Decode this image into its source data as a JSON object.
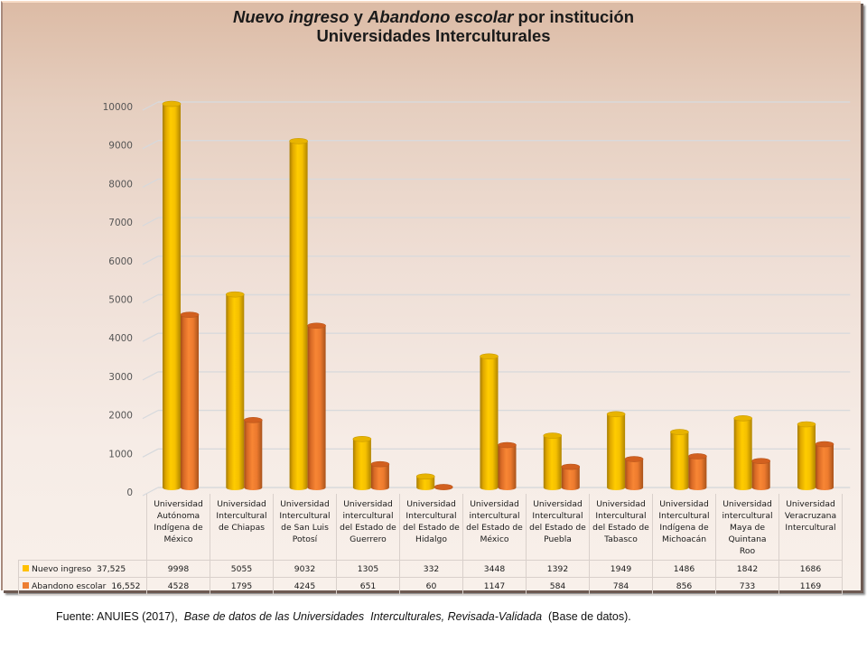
{
  "title": {
    "part1_italic": "Nuevo ingreso",
    "part2": " y ",
    "part3_italic": "Abandono escolar",
    "part4": " por institución",
    "line2": "Universidades Interculturales"
  },
  "colors": {
    "nuevo_ingreso": "#FFC000",
    "abandono_escolar": "#ED7D31"
  },
  "chart_data": {
    "type": "bar",
    "title": "Nuevo ingreso y Abandono escolar por institución — Universidades Interculturales",
    "xlabel": "",
    "ylabel": "",
    "ylim": [
      0,
      10000
    ],
    "yticks": [
      0,
      1000,
      2000,
      3000,
      4000,
      5000,
      6000,
      7000,
      8000,
      9000,
      10000
    ],
    "ytick_labels": [
      "0",
      "1000",
      "2000",
      "3000",
      "4000",
      "5000",
      "6000",
      "7000",
      "8000",
      "9000",
      "10000"
    ],
    "grid": true,
    "legend": "data-table-bottom",
    "categories": [
      "Universidad Autónoma Indígena de México",
      "Universidad Intercultural de Chiapas",
      "Universidad Intercultural de San Luis Potosí",
      "Universidad intercultural del Estado de Guerrero",
      "Universidad Intercultural del Estado de Hidalgo",
      "Universidad intercultural del Estado de México",
      "Universidad Intercultural del Estado de Puebla",
      "Universidad Intercultural del Estado de Tabasco",
      "Universidad Intercultural Indígena de Michoacán",
      "Universidad intercultural Maya de Quintana Roo",
      "Universidad Veracruzana Intercultural"
    ],
    "category_lines": [
      [
        "Universidad",
        "Autónoma",
        "Indígena de",
        "México"
      ],
      [
        "Universidad",
        "Intercultural",
        "de Chiapas"
      ],
      [
        "Universidad",
        "Intercultural",
        "de San Luis",
        "Potosí"
      ],
      [
        "Universidad",
        "intercultural",
        "del Estado de",
        "Guerrero"
      ],
      [
        "Universidad",
        "Intercultural",
        "del Estado de",
        "Hidalgo"
      ],
      [
        "Universidad",
        "intercultural",
        "del Estado de",
        "México"
      ],
      [
        "Universidad",
        "Intercultural",
        "del Estado de",
        "Puebla"
      ],
      [
        "Universidad",
        "Intercultural",
        "del Estado de",
        "Tabasco"
      ],
      [
        "Universidad",
        "Intercultural",
        "Indígena de",
        "Michoacán"
      ],
      [
        "Universidad",
        "intercultural",
        "Maya de",
        "Quintana",
        "Roo"
      ],
      [
        "Universidad",
        "Veracruzana",
        "Intercultural"
      ]
    ],
    "series": [
      {
        "name": "Nuevo ingreso",
        "total_label": "37,525",
        "color": "#FFC000",
        "values": [
          9998,
          5055,
          9032,
          1305,
          332,
          3448,
          1392,
          1949,
          1486,
          1842,
          1686
        ]
      },
      {
        "name": "Abandono escolar",
        "total_label": "16,552",
        "color": "#ED7D31",
        "values": [
          4528,
          1795,
          4245,
          651,
          60,
          1147,
          584,
          784,
          856,
          733,
          1169
        ]
      }
    ]
  },
  "source": {
    "prefix": "Fuente: ANUIES (2017),  ",
    "italic": "Base de datos de las Universidades  Interculturales, Revisada-Validada",
    "suffix": "  (Base de datos)."
  }
}
